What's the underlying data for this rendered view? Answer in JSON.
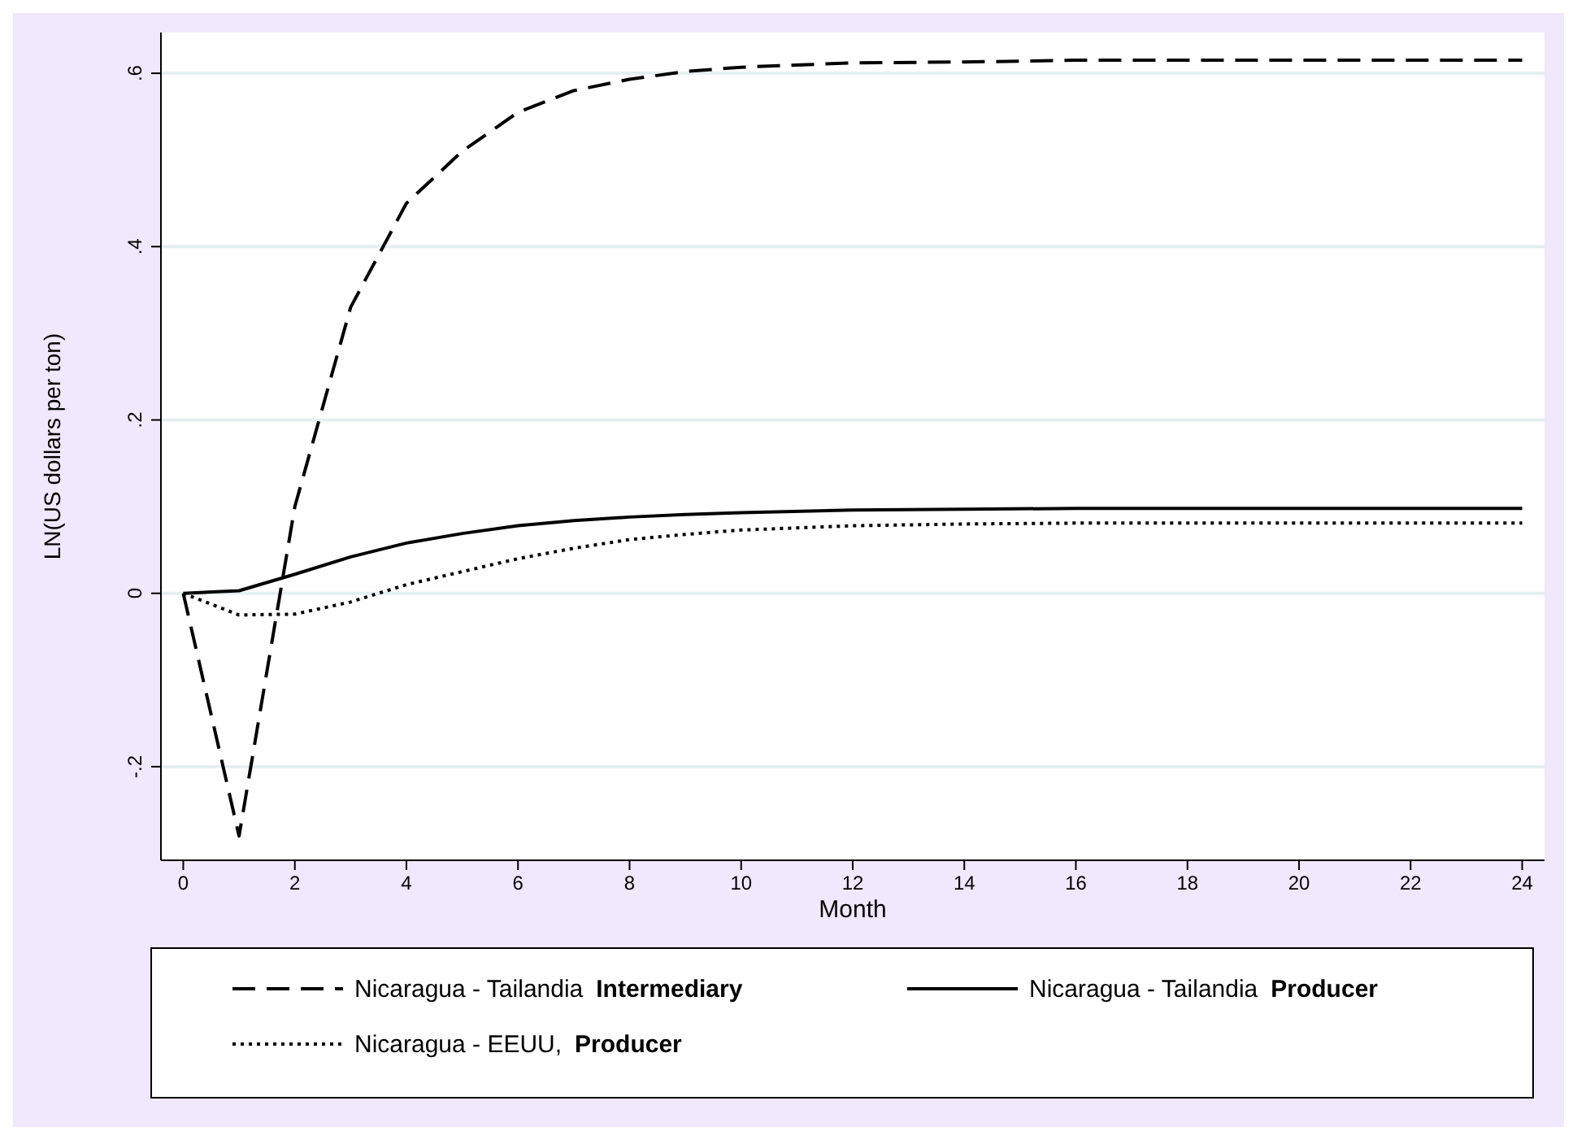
{
  "chart_data": {
    "type": "line",
    "xlabel": "Month",
    "ylabel": "LN(US dollars per ton)",
    "xlim": [
      -0.4,
      24.4
    ],
    "ylim": [
      -0.308,
      0.647
    ],
    "xticks": [
      0,
      2,
      4,
      6,
      8,
      10,
      12,
      14,
      16,
      18,
      20,
      22,
      24
    ],
    "yticks": [
      {
        "value": -0.2,
        "label": "-.2"
      },
      0,
      {
        "value": 0.2,
        "label": ".2"
      },
      {
        "value": 0.4,
        "label": ".4"
      },
      {
        "value": 0.6,
        "label": ".6"
      }
    ],
    "grid": "y",
    "legend": "bottom",
    "x": [
      0,
      1,
      2,
      3,
      4,
      5,
      6,
      7,
      8,
      9,
      10,
      12,
      14,
      16,
      24
    ],
    "series": [
      {
        "name": "Nicaragua - Tailandia Intermediary",
        "color": "#000000",
        "line_style": "dashed",
        "values": [
          0,
          -0.28,
          0.1,
          0.33,
          0.45,
          0.51,
          0.555,
          0.58,
          0.593,
          0.602,
          0.607,
          0.612,
          0.613,
          0.615,
          0.615
        ]
      },
      {
        "name": "Nicaragua - Tailandia Producer",
        "color": "#000000",
        "line_style": "solid",
        "values": [
          0,
          0.003,
          0.022,
          0.042,
          0.058,
          0.069,
          0.078,
          0.084,
          0.088,
          0.091,
          0.093,
          0.096,
          0.097,
          0.098,
          0.098
        ]
      },
      {
        "name": "Nicaragua - EEUU, Producer",
        "color": "#000000",
        "line_style": "dotted",
        "values": [
          0,
          -0.025,
          -0.024,
          -0.01,
          0.01,
          0.025,
          0.04,
          0.052,
          0.062,
          0.068,
          0.073,
          0.078,
          0.08,
          0.081,
          0.081
        ]
      }
    ]
  }
}
